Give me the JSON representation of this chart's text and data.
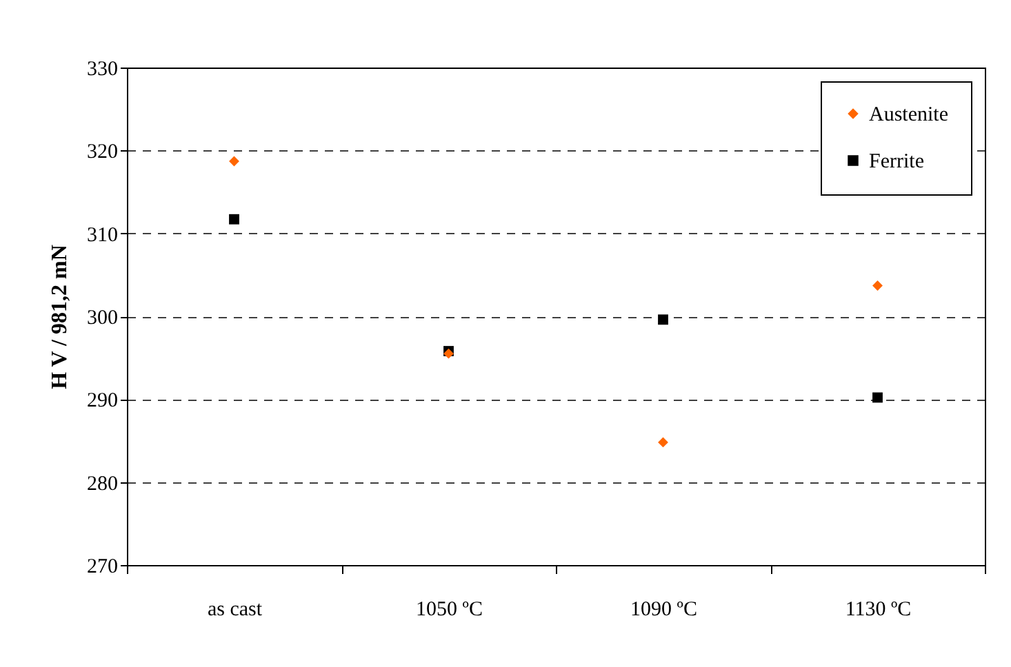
{
  "chart_data": {
    "type": "scatter",
    "ylabel": "H V / 981,2 mN",
    "categories": [
      "as cast",
      "1050 ºC",
      "1090 ºC",
      "1130 ºC"
    ],
    "series": [
      {
        "name": "Austenite",
        "color": "#ff6600",
        "marker": "diamond",
        "values": [
          318.7,
          295.5,
          284.8,
          303.7
        ]
      },
      {
        "name": "Ferrite",
        "color": "#000000",
        "marker": "square",
        "values": [
          311.7,
          295.8,
          299.6,
          290.2
        ]
      }
    ],
    "ylim": [
      270,
      330
    ],
    "yticks": [
      270,
      280,
      290,
      300,
      310,
      320,
      330
    ],
    "grid": "y",
    "line_style": "dashed",
    "legend": "top right"
  }
}
